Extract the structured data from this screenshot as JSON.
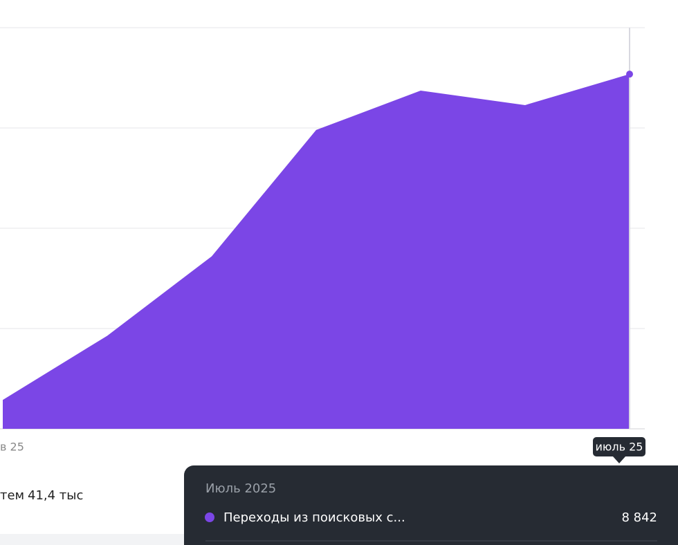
{
  "chart_data": {
    "type": "area",
    "categories": [
      "в 25",
      null,
      null,
      null,
      null,
      null,
      "июль 25"
    ],
    "series": [
      {
        "name": "Переходы из поисковых с...",
        "color": "#7b46e6",
        "values": [
          720,
          2320,
          4300,
          7450,
          8430,
          8070,
          8842
        ],
        "value_labels": [
          null,
          null,
          null,
          null,
          null,
          null,
          "8 842"
        ]
      }
    ],
    "ylim": [
      0,
      10000
    ],
    "yticks": [
      0,
      2500,
      5000,
      7500,
      10000
    ],
    "grid": true,
    "tooltip_title": "Июль 2025"
  },
  "summary": {
    "label": "тем",
    "value": "41,4 тыс"
  }
}
